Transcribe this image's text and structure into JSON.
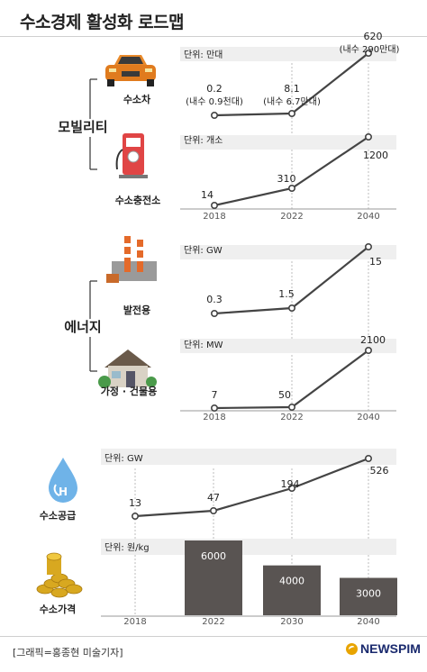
{
  "title": "수소경제 활성화 로드맵",
  "credit": "[그래픽=홍종현 미술기자]",
  "logo": "NEWSPIM",
  "groups": [
    {
      "label": "모빌리티"
    },
    {
      "label": "에너지"
    }
  ],
  "colors": {
    "line": "#444444",
    "marker_fill": "#ffffff",
    "bar": "#595452",
    "bar_text": "#ffffff",
    "group_line": "#333333"
  },
  "chart_data": [
    {
      "type": "line",
      "icon": "car-icon",
      "label": "수소차",
      "unit": "단위: 만대",
      "x": [
        "2018",
        "2022",
        "2040"
      ],
      "values": [
        0.2,
        8.1,
        620
      ],
      "value_labels": [
        "0.2",
        "8.1",
        "620"
      ],
      "notes": [
        "(내수 0.9천대)",
        "(내수 6.7만대)",
        "(내수 290만대)"
      ],
      "show_xticks": false
    },
    {
      "type": "line",
      "icon": "charging-station-icon",
      "label": "수소충전소",
      "unit": "단위: 개소",
      "x": [
        "2018",
        "2022",
        "2040"
      ],
      "values": [
        14,
        310,
        1200
      ],
      "value_labels": [
        "14",
        "310",
        "1200"
      ],
      "show_xticks": true
    },
    {
      "type": "line",
      "icon": "power-plant-icon",
      "label": "발전용",
      "unit": "단위: GW",
      "x": [
        "2018",
        "2022",
        "2040"
      ],
      "values": [
        0.3,
        1.5,
        15
      ],
      "value_labels": [
        "0.3",
        "1.5",
        "15"
      ],
      "show_xticks": false
    },
    {
      "type": "line",
      "icon": "house-icon",
      "label": "가정 · 건물용",
      "unit": "단위: MW",
      "x": [
        "2018",
        "2022",
        "2040"
      ],
      "values": [
        7,
        50,
        2100
      ],
      "value_labels": [
        "7",
        "50",
        "2100"
      ],
      "show_xticks": true
    },
    {
      "type": "line",
      "icon": "water-drop-icon",
      "label": "수소공급",
      "unit": "단위: GW",
      "x": [
        "2018",
        "2022",
        "2030",
        "2040"
      ],
      "values": [
        13,
        47,
        194,
        526
      ],
      "value_labels": [
        "13",
        "47",
        "194",
        "526"
      ],
      "show_xticks": false
    },
    {
      "type": "bar",
      "icon": "coins-icon",
      "label": "수소가격",
      "unit": "단위: 원/kg",
      "x": [
        "2018",
        "2022",
        "2030",
        "2040"
      ],
      "values": [
        null,
        6000,
        4000,
        3000
      ],
      "value_labels": [
        "",
        "6000",
        "4000",
        "3000"
      ],
      "show_xticks": true
    }
  ]
}
